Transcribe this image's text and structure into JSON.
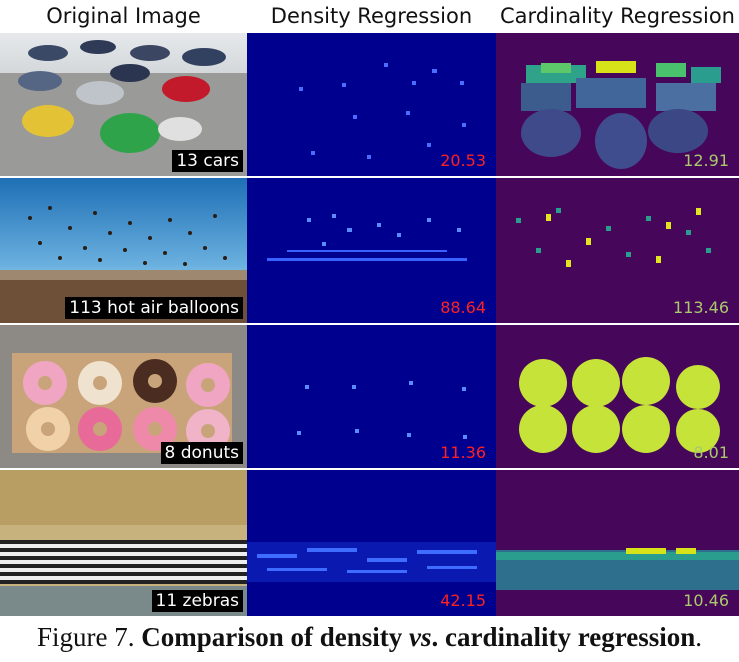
{
  "headers": {
    "original": "Original Image",
    "density": "Density Regression",
    "cardinality": "Cardinality Regression"
  },
  "rows": [
    {
      "label": "13 cars",
      "density_value": "20.53",
      "cardinality_value": "12.91"
    },
    {
      "label": "113 hot air balloons",
      "density_value": "88.64",
      "cardinality_value": "113.46"
    },
    {
      "label": "8 donuts",
      "density_value": "11.36",
      "cardinality_value": "8.01"
    },
    {
      "label": "11 zebras",
      "density_value": "42.15",
      "cardinality_value": "10.46"
    }
  ],
  "caption": {
    "prefix": "Figure 7.",
    "bold_part1": "Comparison of density",
    "italic_vs": "vs",
    "bold_part2": ". cardinality regression",
    "suffix": "."
  },
  "colors": {
    "density_bg": "#00008f",
    "cardinality_bg": "#46075a",
    "density_value": "#ff2020",
    "cardinality_value": "#a9c96a"
  }
}
